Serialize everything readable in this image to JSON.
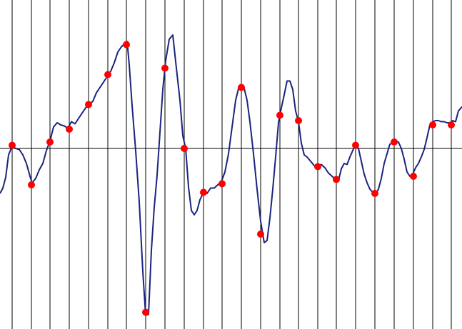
{
  "chart_data": {
    "type": "line",
    "title": "",
    "xlabel": "",
    "ylabel": "",
    "grid": "vertical-lines",
    "baseline_y": 0,
    "xlim": [
      0,
      647
    ],
    "ylim": [
      -1.6,
      1.4
    ],
    "colors": {
      "line": "#1a237e",
      "sample": "#ff0000",
      "grid": "#000000",
      "background": "#ffffff"
    },
    "curve": [
      [
        0,
        -0.42
      ],
      [
        4,
        -0.37
      ],
      [
        8,
        -0.27
      ],
      [
        12,
        -0.06
      ],
      [
        17,
        0.02
      ],
      [
        22,
        0.0
      ],
      [
        27,
        -0.01
      ],
      [
        32,
        -0.06
      ],
      [
        37,
        -0.14
      ],
      [
        42,
        -0.26
      ],
      [
        45,
        -0.32
      ],
      [
        50,
        -0.28
      ],
      [
        55,
        -0.2
      ],
      [
        60,
        -0.14
      ],
      [
        65,
        -0.02
      ],
      [
        70,
        0.07
      ],
      [
        75,
        0.2
      ],
      [
        80,
        0.24
      ],
      [
        85,
        0.22
      ],
      [
        90,
        0.21
      ],
      [
        95,
        0.19
      ],
      [
        100,
        0.25
      ],
      [
        105,
        0.23
      ],
      [
        110,
        0.28
      ],
      [
        115,
        0.33
      ],
      [
        120,
        0.38
      ],
      [
        125,
        0.41
      ],
      [
        130,
        0.44
      ],
      [
        135,
        0.52
      ],
      [
        140,
        0.57
      ],
      [
        145,
        0.62
      ],
      [
        150,
        0.67
      ],
      [
        155,
        0.72
      ],
      [
        160,
        0.8
      ],
      [
        165,
        0.9
      ],
      [
        170,
        0.95
      ],
      [
        175,
        0.98
      ],
      [
        178,
        1.0
      ],
      [
        181,
        0.78
      ],
      [
        185,
        0.4
      ],
      [
        190,
        -0.02
      ],
      [
        195,
        -0.5
      ],
      [
        200,
        -1.15
      ],
      [
        204,
        -1.56
      ],
      [
        208,
        -1.55
      ],
      [
        212,
        -0.95
      ],
      [
        216,
        -0.55
      ],
      [
        220,
        -0.25
      ],
      [
        224,
        0.15
      ],
      [
        228,
        0.55
      ],
      [
        232,
        0.82
      ],
      [
        237,
        1.02
      ],
      [
        242,
        1.06
      ],
      [
        247,
        0.75
      ],
      [
        252,
        0.45
      ],
      [
        256,
        0.12
      ],
      [
        260,
        0.0
      ],
      [
        264,
        -0.36
      ],
      [
        268,
        -0.58
      ],
      [
        272,
        -0.62
      ],
      [
        276,
        -0.58
      ],
      [
        280,
        -0.48
      ],
      [
        285,
        -0.41
      ],
      [
        290,
        -0.42
      ],
      [
        295,
        -0.37
      ],
      [
        300,
        -0.37
      ],
      [
        305,
        -0.34
      ],
      [
        310,
        -0.31
      ],
      [
        315,
        -0.22
      ],
      [
        320,
        -0.05
      ],
      [
        325,
        0.2
      ],
      [
        330,
        0.45
      ],
      [
        334,
        0.56
      ],
      [
        338,
        0.59
      ],
      [
        342,
        0.56
      ],
      [
        346,
        0.45
      ],
      [
        350,
        0.25
      ],
      [
        355,
        -0.05
      ],
      [
        360,
        -0.38
      ],
      [
        365,
        -0.68
      ],
      [
        370,
        -0.88
      ],
      [
        374,
        -0.86
      ],
      [
        378,
        -0.65
      ],
      [
        382,
        -0.38
      ],
      [
        386,
        -0.08
      ],
      [
        390,
        0.24
      ],
      [
        394,
        0.38
      ],
      [
        398,
        0.5
      ],
      [
        402,
        0.63
      ],
      [
        406,
        0.63
      ],
      [
        410,
        0.55
      ],
      [
        414,
        0.35
      ],
      [
        418,
        0.25
      ],
      [
        422,
        0.05
      ],
      [
        426,
        -0.06
      ],
      [
        430,
        -0.08
      ],
      [
        435,
        -0.12
      ],
      [
        440,
        -0.16
      ],
      [
        445,
        -0.17
      ],
      [
        450,
        -0.15
      ],
      [
        455,
        -0.18
      ],
      [
        460,
        -0.23
      ],
      [
        465,
        -0.26
      ],
      [
        470,
        -0.29
      ],
      [
        474,
        -0.3
      ],
      [
        478,
        -0.19
      ],
      [
        482,
        -0.14
      ],
      [
        486,
        -0.15
      ],
      [
        490,
        -0.08
      ],
      [
        494,
        -0.02
      ],
      [
        498,
        0.04
      ],
      [
        502,
        0.0
      ],
      [
        506,
        -0.12
      ],
      [
        510,
        -0.24
      ],
      [
        514,
        -0.32
      ],
      [
        518,
        -0.38
      ],
      [
        522,
        -0.41
      ],
      [
        526,
        -0.43
      ],
      [
        530,
        -0.38
      ],
      [
        534,
        -0.28
      ],
      [
        538,
        -0.14
      ],
      [
        542,
        -0.05
      ],
      [
        546,
        0.04
      ],
      [
        550,
        0.05
      ],
      [
        554,
        0.07
      ],
      [
        558,
        0.06
      ],
      [
        562,
        0.0
      ],
      [
        566,
        -0.1
      ],
      [
        570,
        -0.22
      ],
      [
        574,
        -0.26
      ],
      [
        578,
        -0.24
      ],
      [
        582,
        -0.18
      ],
      [
        586,
        -0.14
      ],
      [
        590,
        -0.08
      ],
      [
        594,
        -0.01
      ],
      [
        598,
        0.1
      ],
      [
        602,
        0.22
      ],
      [
        606,
        0.25
      ],
      [
        610,
        0.26
      ],
      [
        614,
        0.26
      ],
      [
        618,
        0.25
      ],
      [
        622,
        0.25
      ],
      [
        626,
        0.24
      ],
      [
        630,
        0.24
      ],
      [
        634,
        0.26
      ],
      [
        638,
        0.25
      ],
      [
        642,
        0.35
      ],
      [
        647,
        0.39
      ]
    ],
    "samples": [
      [
        17,
        0.03
      ],
      [
        44,
        -0.34
      ],
      [
        70,
        0.06
      ],
      [
        97,
        0.18
      ],
      [
        124,
        0.41
      ],
      [
        151,
        0.69
      ],
      [
        177,
        0.97
      ],
      [
        204,
        -1.53
      ],
      [
        231,
        0.75
      ],
      [
        258,
        0.0
      ],
      [
        285,
        -0.41
      ],
      [
        311,
        -0.33
      ],
      [
        338,
        0.57
      ],
      [
        365,
        -0.8
      ],
      [
        392,
        0.31
      ],
      [
        418,
        0.26
      ],
      [
        445,
        -0.17
      ],
      [
        471,
        -0.29
      ],
      [
        498,
        0.03
      ],
      [
        525,
        -0.42
      ],
      [
        552,
        0.06
      ],
      [
        579,
        -0.26
      ],
      [
        606,
        0.22
      ],
      [
        632,
        0.22
      ]
    ],
    "vertical_lines_x": [
      17,
      44,
      70,
      97,
      124,
      151,
      177,
      204,
      231,
      258,
      285,
      311,
      338,
      365,
      392,
      418,
      445,
      471,
      498,
      525,
      552,
      579,
      606,
      632
    ]
  }
}
